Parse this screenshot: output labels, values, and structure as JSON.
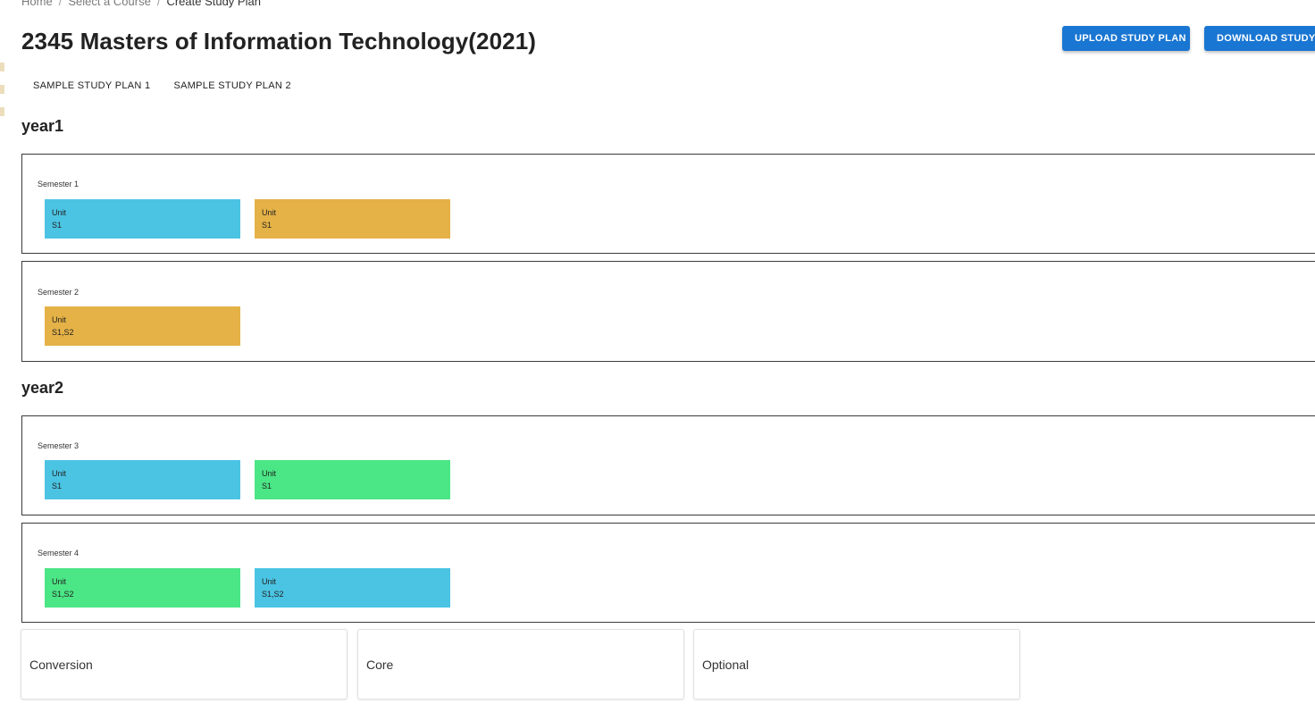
{
  "breadcrumb": {
    "items": [
      "Home",
      "Select a Course",
      "Create Study Plan"
    ],
    "separator": "/"
  },
  "header": {
    "title": "2345 Masters of Information Technology(2021)",
    "upload_label": "UPLOAD STUDY PLAN",
    "download_label": "DOWNLOAD STUDY PLAN"
  },
  "tabs": [
    {
      "label": "SAMPLE STUDY PLAN 1"
    },
    {
      "label": "SAMPLE STUDY PLAN 2"
    }
  ],
  "colors": {
    "primary_button": "#1976d2",
    "conversion_unit": "#4bc4e3",
    "core_unit": "#e5b247",
    "optional_unit": "#4be685"
  },
  "years": [
    {
      "title": "year1",
      "semesters": [
        {
          "label": "Semester 1",
          "units": [
            {
              "name": "Unit",
              "offering": "S1",
              "type": "conversion"
            },
            {
              "name": "Unit",
              "offering": "S1",
              "type": "core"
            }
          ]
        },
        {
          "label": "Semester 2",
          "units": [
            {
              "name": "Unit",
              "offering": "S1,S2",
              "type": "core"
            }
          ]
        }
      ]
    },
    {
      "title": "year2",
      "semesters": [
        {
          "label": "Semester 3",
          "units": [
            {
              "name": "Unit",
              "offering": "S1",
              "type": "conversion"
            },
            {
              "name": "Unit",
              "offering": "S1",
              "type": "optional"
            }
          ]
        },
        {
          "label": "Semester 4",
          "units": [
            {
              "name": "Unit",
              "offering": "S1,S2",
              "type": "optional"
            },
            {
              "name": "Unit",
              "offering": "S1,S2",
              "type": "conversion"
            }
          ]
        }
      ]
    }
  ],
  "legend": [
    {
      "label": "Conversion"
    },
    {
      "label": "Core"
    },
    {
      "label": "Optional"
    }
  ]
}
